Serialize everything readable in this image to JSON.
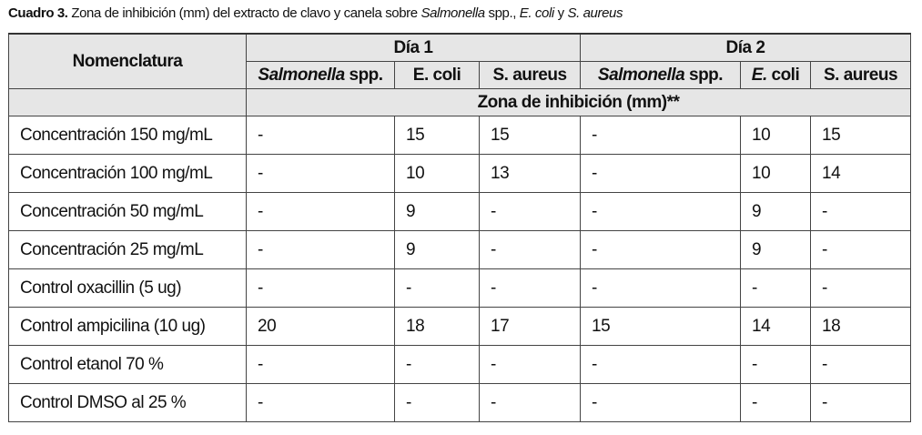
{
  "caption": {
    "label": "Cuadro 3.",
    "text_1": " Zona de inhibición (mm) del extracto de clavo y canela sobre ",
    "italic_1": "Salmonella",
    "text_2": " spp., ",
    "italic_2": "E. coli",
    "text_3": " y ",
    "italic_3": "S. aureus"
  },
  "header": {
    "nomenclatura": "Nomenclatura",
    "day1": "Día 1",
    "day2": "Día 2",
    "salmonella_italic": "Salmonella",
    "spp": " spp.",
    "ecoli": "E. coli",
    "ecoli_italic": "E.",
    "coli": " coli",
    "saureus": "S. aureus",
    "zona": "Zona de inhibición (mm)**"
  },
  "rows": [
    {
      "name": "Concentración 150 mg/mL",
      "values": [
        "-",
        "15",
        "15",
        "-",
        "10",
        "15"
      ]
    },
    {
      "name": "Concentración 100 mg/mL",
      "values": [
        "-",
        "10",
        "13",
        "-",
        "10",
        "14"
      ]
    },
    {
      "name": "Concentración 50 mg/mL",
      "values": [
        "-",
        "9",
        "-",
        "-",
        "9",
        "-"
      ]
    },
    {
      "name": "Concentración 25 mg/mL",
      "values": [
        "-",
        "9",
        "-",
        "-",
        "9",
        "-"
      ]
    },
    {
      "name": "Control oxacillin (5 ug)",
      "values": [
        "-",
        "-",
        "-",
        "-",
        "-",
        "-"
      ]
    },
    {
      "name": "Control ampicilina (10 ug)",
      "values": [
        "20",
        "18",
        "17",
        "15",
        "14",
        "18"
      ]
    },
    {
      "name": "Control etanol 70 %",
      "values": [
        "-",
        "-",
        "-",
        "-",
        "-",
        "-"
      ]
    },
    {
      "name": "Control DMSO al 25 %",
      "values": [
        "-",
        "-",
        "-",
        "-",
        "-",
        "-"
      ]
    }
  ]
}
